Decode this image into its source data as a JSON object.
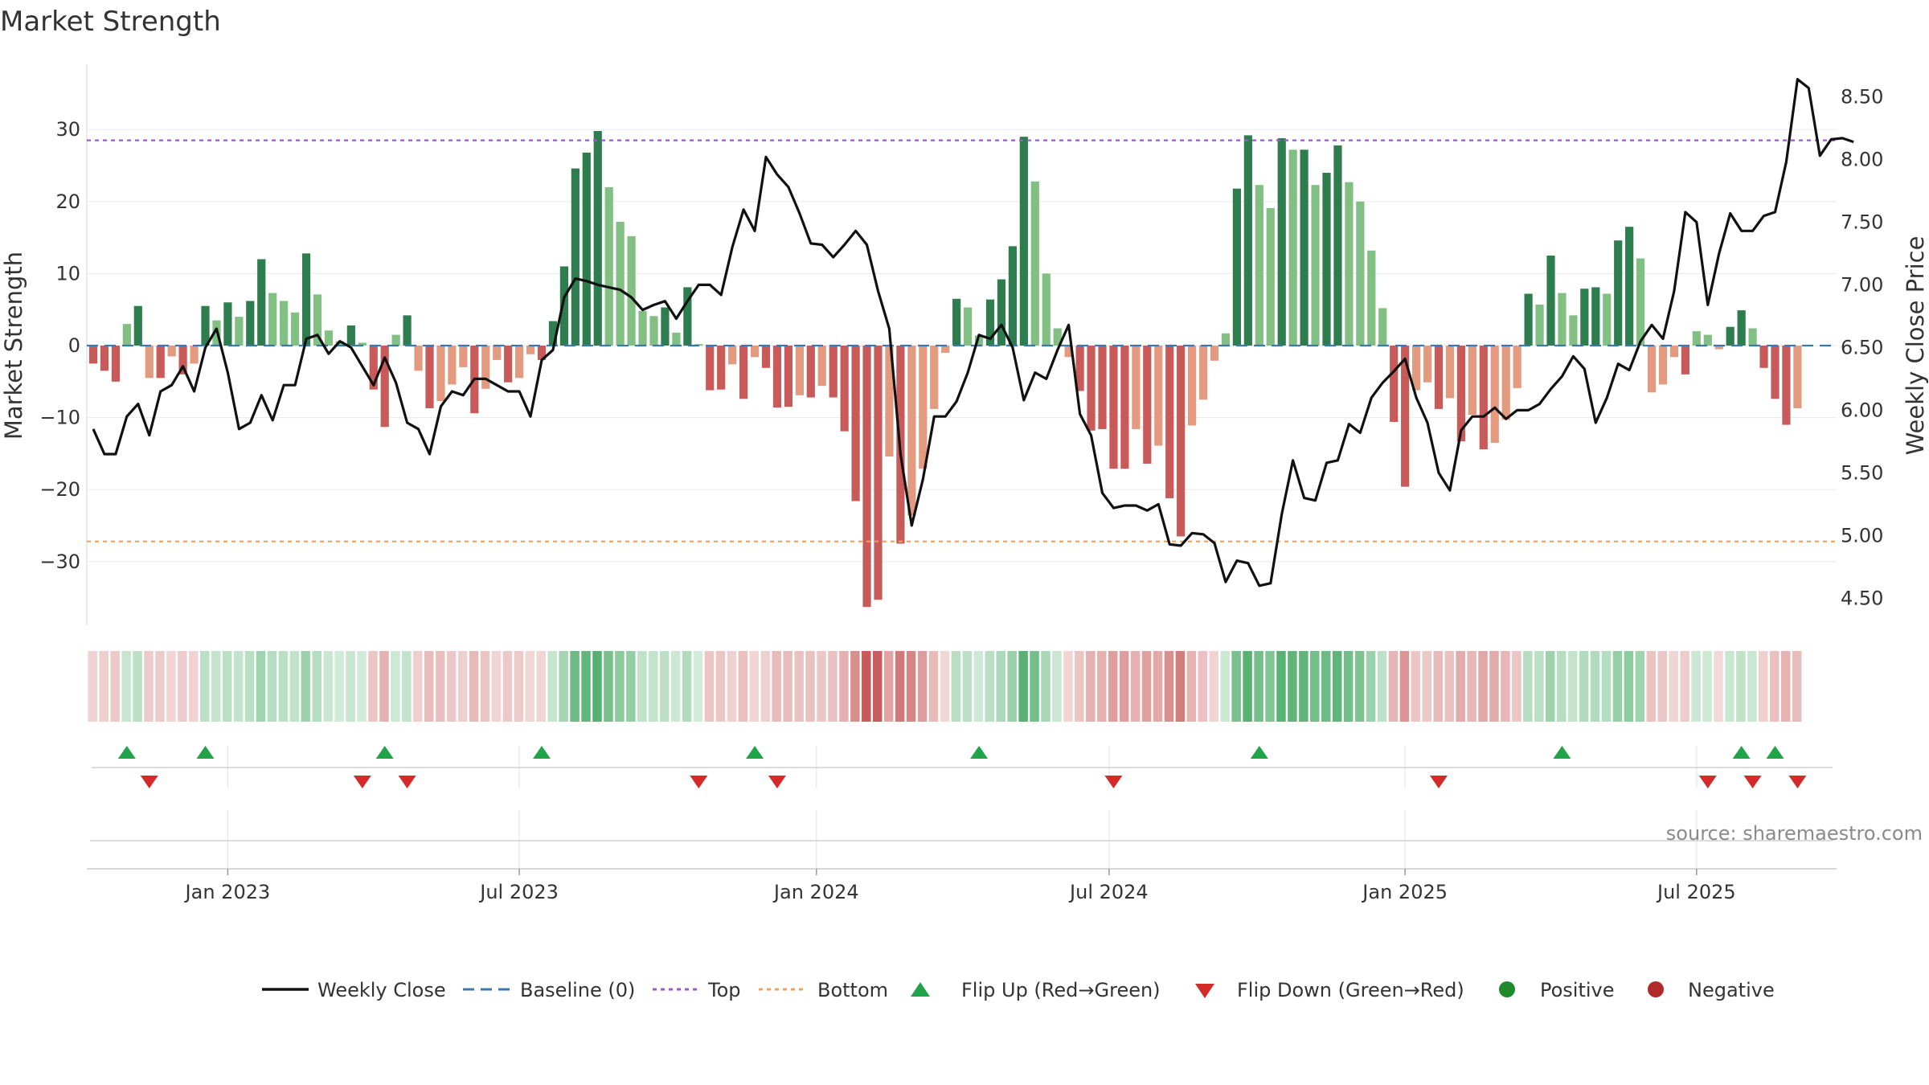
{
  "chart_data": {
    "type": "bar",
    "title": "Market Strength",
    "ylabel": "Market Strength",
    "y2label": "Weekly Close Price",
    "ylim": [
      -39,
      39
    ],
    "y_ticks": [
      30,
      20,
      10,
      0,
      -10,
      -20,
      -30
    ],
    "y_tick_labels": [
      "30",
      "20",
      "10",
      "0",
      "−10",
      "−20",
      "−30"
    ],
    "y2lim": [
      4.4,
      8.95
    ],
    "y2_ticks": [
      8.5,
      8.0,
      7.5,
      7.0,
      6.5,
      6.0,
      5.5,
      5.0,
      4.5
    ],
    "y2_tick_labels": [
      "8.50",
      "8.00",
      "7.50",
      "7.00",
      "6.50",
      "6.00",
      "5.50",
      "5.00",
      "4.50"
    ],
    "top_level": 28.5,
    "bottom_level": -27.2,
    "x_tick_labels": [
      "Jan 2023",
      "Jul 2023",
      "Jan 2024",
      "Jul 2024",
      "Jan 2025",
      "Jul 2025"
    ],
    "x_tick_weeks": [
      12,
      38,
      64.5,
      90.6,
      117,
      143
    ],
    "strength": [
      -2.5,
      -3.5,
      -5,
      3,
      5.5,
      -4.5,
      -4.5,
      -1.5,
      -4,
      -2.5,
      5.5,
      3.5,
      6,
      4,
      6.2,
      12,
      7.3,
      6.2,
      4.6,
      12.8,
      7.1,
      2.1,
      0.6,
      2.8,
      0.4,
      -6.1,
      -11.3,
      1.5,
      4.2,
      -3.5,
      -8.7,
      -7.7,
      -5.4,
      -3,
      -9.4,
      -6,
      -2,
      -5.1,
      -4.5,
      -1.2,
      -2,
      3.4,
      11,
      24.6,
      26.8,
      29.8,
      22,
      17.2,
      15.2,
      4.8,
      4.1,
      5.3,
      1.8,
      8.1,
      0.2,
      -6.2,
      -6.1,
      -2.6,
      -7.4,
      -1.6,
      -3.1,
      -8.6,
      -8.5,
      -6.9,
      -7.2,
      -5.6,
      -7.2,
      -11.9,
      -21.6,
      -36.3,
      -35.3,
      -15.4,
      -27.5,
      -23.6,
      -17.1,
      -8.8,
      -1,
      6.5,
      5.3,
      1.4,
      6.4,
      9.2,
      13.8,
      29,
      22.8,
      10,
      2.4,
      -1.6,
      -6.3,
      -11.8,
      -11.6,
      -17.1,
      -17.1,
      -11.6,
      -16.4,
      -13.9,
      -21.2,
      -26.5,
      -11.1,
      -7.5,
      -2.1,
      1.7,
      21.8,
      29.2,
      22.3,
      19.1,
      28.8,
      27.2,
      27.2,
      22.3,
      24,
      27.8,
      22.7,
      20,
      13.2,
      5.2,
      -10.6,
      -19.6,
      -6.2,
      -5.1,
      -8.8,
      -7.3,
      -13.3,
      -9.6,
      -14.4,
      -13.5,
      -10.3,
      -5.9,
      7.2,
      5.7,
      12.5,
      7.3,
      4.2,
      7.9,
      8.1,
      7.2,
      14.6,
      16.5,
      12.1,
      -6.5,
      -5.4,
      -1.6,
      -4,
      2,
      1.5,
      -0.5,
      2.6,
      4.9,
      2.4,
      -3.1,
      -7.4,
      -11,
      -8.7
    ],
    "close": [
      5.85,
      5.65,
      5.65,
      5.95,
      6.05,
      5.8,
      6.15,
      6.2,
      6.35,
      6.15,
      6.5,
      6.65,
      6.3,
      5.85,
      5.9,
      6.12,
      5.92,
      6.2,
      6.2,
      6.57,
      6.6,
      6.45,
      6.55,
      6.5,
      6.35,
      6.2,
      6.42,
      6.22,
      5.9,
      5.85,
      5.65,
      6.03,
      6.15,
      6.12,
      6.25,
      6.25,
      6.2,
      6.15,
      6.15,
      5.95,
      6.4,
      6.48,
      6.9,
      7.05,
      7.03,
      7,
      6.98,
      6.96,
      6.9,
      6.8,
      6.84,
      6.87,
      6.73,
      6.87,
      7,
      7,
      6.92,
      7.3,
      7.6,
      7.43,
      8.02,
      7.88,
      7.78,
      7.57,
      7.33,
      7.32,
      7.22,
      7.32,
      7.43,
      7.32,
      6.95,
      6.65,
      5.65,
      5.08,
      5.45,
      5.95,
      5.95,
      6.07,
      6.3,
      6.6,
      6.57,
      6.68,
      6.5,
      6.08,
      6.3,
      6.25,
      6.48,
      6.68,
      5.97,
      5.8,
      5.34,
      5.22,
      5.24,
      5.24,
      5.2,
      5.25,
      4.93,
      4.92,
      5.02,
      5.01,
      4.94,
      4.63,
      4.8,
      4.78,
      4.6,
      4.62,
      5.17,
      5.6,
      5.3,
      5.28,
      5.58,
      5.6,
      5.89,
      5.82,
      6.1,
      6.22,
      6.31,
      6.41,
      6.1,
      5.9,
      5.5,
      5.36,
      5.84,
      5.95,
      5.95,
      6.02,
      5.93,
      6,
      6,
      6.05,
      6.17,
      6.27,
      6.43,
      6.33,
      5.9,
      6.1,
      6.37,
      6.32,
      6.55,
      6.68,
      6.57,
      6.95,
      7.58,
      7.5,
      6.84,
      7.25,
      7.57,
      7.43,
      7.43,
      7.55,
      7.58,
      7.98,
      8.64,
      8.57,
      8.03,
      8.16,
      8.17,
      8.14
    ],
    "flip_up_weeks": [
      3,
      10,
      26,
      40,
      59,
      79,
      104,
      131,
      147,
      150
    ],
    "flip_down_weeks": [
      5,
      24,
      28,
      54,
      61,
      91,
      120,
      144,
      148,
      152
    ],
    "legend": [
      "Weekly Close",
      "Baseline (0)",
      "Top",
      "Bottom",
      "Flip Up (Red→Green)",
      "Flip Down (Green→Red)",
      "Positive",
      "Negative"
    ],
    "colors": {
      "strong_green": "#2e7d4f",
      "light_green": "#82bf82",
      "strong_red": "#c85a5a",
      "light_red": "#e39a7e",
      "close_line": "#111111",
      "baseline": "#3a78b5",
      "top_line": "#9b59d0",
      "bottom_line": "#f0a05a",
      "flip_up": "#21a34a",
      "flip_down": "#d42a2a",
      "positive_dot": "#1e8a2a",
      "negative_dot": "#b02a2a"
    }
  },
  "source": "source: sharemaestro.com"
}
